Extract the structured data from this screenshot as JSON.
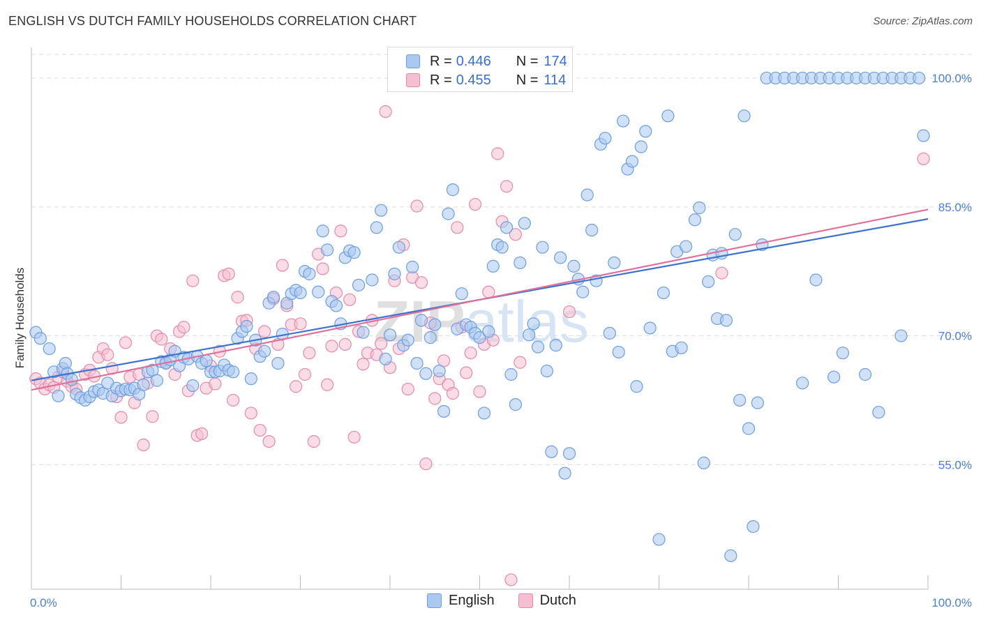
{
  "title": "ENGLISH VS DUTCH FAMILY HOUSEHOLDS CORRELATION CHART",
  "source": "Source: ZipAtlas.com",
  "watermark": "ZIPatlas",
  "legend_top": {
    "rows": [
      {
        "r_label": "R = ",
        "r_value": "0.446",
        "n_label": "N = ",
        "n_value": "174"
      },
      {
        "r_label": "R = ",
        "r_value": "0.455",
        "n_label": "N = ",
        "n_value": "114"
      }
    ]
  },
  "legend_bottom": {
    "english": "English",
    "dutch": "Dutch"
  },
  "colors": {
    "english_fill": "#aac8f0",
    "english_stroke": "#6d9de0",
    "english_line": "#3a73cf",
    "dutch_fill": "#f6bfd1",
    "dutch_stroke": "#e48aaa",
    "dutch_line": "#e0709a",
    "grid": "#dddddd",
    "tick_text": "#4a7fd4"
  },
  "chart_data": {
    "type": "scatter",
    "title": "ENGLISH VS DUTCH FAMILY HOUSEHOLDS CORRELATION CHART",
    "xlabel": "",
    "ylabel": "Family Households",
    "xlim": [
      0,
      100
    ],
    "ylim": [
      40.5,
      103
    ],
    "x_tick_labels": [
      "0.0%",
      "100.0%"
    ],
    "y_ticks": [
      55,
      70,
      85,
      100
    ],
    "y_tick_labels": [
      "55.0%",
      "70.0%",
      "85.0%",
      "100.0%"
    ],
    "grid": true,
    "legend_position": "top-center",
    "series": [
      {
        "name": "English",
        "r": 0.446,
        "n": 174,
        "trend": [
          [
            0,
            64.8
          ],
          [
            100,
            83.6
          ]
        ],
        "points": [
          [
            0.5,
            70.4
          ],
          [
            1,
            69.7
          ],
          [
            2,
            68.5
          ],
          [
            2.5,
            65.8
          ],
          [
            3,
            63
          ],
          [
            3.5,
            66.2
          ],
          [
            3.8,
            66.8
          ],
          [
            4,
            65.6
          ],
          [
            4.5,
            64.9
          ],
          [
            5,
            63.2
          ],
          [
            5.5,
            62.8
          ],
          [
            6,
            62.5
          ],
          [
            6.5,
            62.9
          ],
          [
            7,
            63.5
          ],
          [
            7.5,
            63.7
          ],
          [
            8,
            63.3
          ],
          [
            8.5,
            64.5
          ],
          [
            9,
            63
          ],
          [
            9.5,
            63.9
          ],
          [
            10,
            63.6
          ],
          [
            10.5,
            63.8
          ],
          [
            11,
            63.7
          ],
          [
            11.5,
            63.9
          ],
          [
            12,
            63.2
          ],
          [
            12.5,
            64.3
          ],
          [
            13,
            65.8
          ],
          [
            13.5,
            66
          ],
          [
            14,
            64.8
          ],
          [
            14.5,
            67
          ],
          [
            15,
            66.8
          ],
          [
            15.5,
            67.2
          ],
          [
            16,
            68.2
          ],
          [
            16.5,
            66.5
          ],
          [
            17,
            67.5
          ],
          [
            17.5,
            67.3
          ],
          [
            18,
            64.2
          ],
          [
            18.5,
            67.6
          ],
          [
            19,
            66.8
          ],
          [
            19.5,
            67.1
          ],
          [
            20,
            65.8
          ],
          [
            20.5,
            65.8
          ],
          [
            21,
            65.9
          ],
          [
            21.5,
            66.6
          ],
          [
            22,
            66
          ],
          [
            22.5,
            65.8
          ],
          [
            23,
            69.7
          ],
          [
            23.5,
            70.5
          ],
          [
            24,
            71.1
          ],
          [
            24.5,
            65
          ],
          [
            25,
            69.5
          ],
          [
            25.5,
            67.6
          ],
          [
            26,
            68.2
          ],
          [
            26.5,
            73.8
          ],
          [
            27,
            74.5
          ],
          [
            27.5,
            66.8
          ],
          [
            28,
            70.2
          ],
          [
            28.5,
            73.8
          ],
          [
            29,
            74.9
          ],
          [
            29.5,
            75.3
          ],
          [
            30,
            75
          ],
          [
            30.5,
            77.5
          ],
          [
            31,
            77.2
          ],
          [
            32,
            75.1
          ],
          [
            32.5,
            82.2
          ],
          [
            33,
            80
          ],
          [
            33.5,
            74
          ],
          [
            34,
            73.5
          ],
          [
            34.5,
            71.4
          ],
          [
            35,
            79.1
          ],
          [
            35.5,
            79.9
          ],
          [
            36,
            79.7
          ],
          [
            36.5,
            75.9
          ],
          [
            37,
            70.4
          ],
          [
            38,
            76.5
          ],
          [
            38.5,
            82.6
          ],
          [
            39,
            84.6
          ],
          [
            39.5,
            67.3
          ],
          [
            40,
            70.1
          ],
          [
            40.5,
            77.2
          ],
          [
            41,
            80.3
          ],
          [
            41.5,
            68.9
          ],
          [
            42,
            69.5
          ],
          [
            42.5,
            78
          ],
          [
            43,
            66.8
          ],
          [
            43.5,
            71.8
          ],
          [
            44,
            65.6
          ],
          [
            44.5,
            69.8
          ],
          [
            45,
            71.3
          ],
          [
            45.5,
            65.9
          ],
          [
            46,
            61.2
          ],
          [
            46.5,
            84.2
          ],
          [
            47,
            87
          ],
          [
            47.5,
            70.8
          ],
          [
            48,
            74.9
          ],
          [
            48.5,
            71.3
          ],
          [
            49,
            71
          ],
          [
            49.5,
            70.3
          ],
          [
            50,
            69.8
          ],
          [
            50.5,
            61
          ],
          [
            51,
            70.5
          ],
          [
            51.5,
            78.1
          ],
          [
            52,
            80.6
          ],
          [
            52.5,
            80.3
          ],
          [
            53,
            82.6
          ],
          [
            53.5,
            65.5
          ],
          [
            54,
            62
          ],
          [
            54.5,
            78.5
          ],
          [
            55,
            83.1
          ],
          [
            55.5,
            70.1
          ],
          [
            56,
            71.4
          ],
          [
            56.5,
            68.7
          ],
          [
            57,
            80.3
          ],
          [
            57.5,
            65.9
          ],
          [
            58,
            56.5
          ],
          [
            58.5,
            68.9
          ],
          [
            59,
            79.1
          ],
          [
            59.5,
            54
          ],
          [
            60,
            56.3
          ],
          [
            60.5,
            78.1
          ],
          [
            61,
            76.6
          ],
          [
            61.5,
            75.1
          ],
          [
            62,
            86.4
          ],
          [
            62.5,
            82.3
          ],
          [
            63,
            76.4
          ],
          [
            63.5,
            92.3
          ],
          [
            64,
            93
          ],
          [
            64.5,
            70.3
          ],
          [
            65,
            78.5
          ],
          [
            65.5,
            68.1
          ],
          [
            66,
            95
          ],
          [
            66.5,
            89.4
          ],
          [
            67,
            90.3
          ],
          [
            67.5,
            64.1
          ],
          [
            68,
            92
          ],
          [
            68.5,
            93.8
          ],
          [
            69,
            70.9
          ],
          [
            70,
            46.3
          ],
          [
            70.5,
            75
          ],
          [
            71,
            95.6
          ],
          [
            71.5,
            68.2
          ],
          [
            72,
            79.8
          ],
          [
            72.5,
            68.6
          ],
          [
            73,
            80.4
          ],
          [
            74,
            83.5
          ],
          [
            74.5,
            84.9
          ],
          [
            75,
            55.2
          ],
          [
            75.5,
            76.3
          ],
          [
            76,
            79.4
          ],
          [
            76.5,
            72
          ],
          [
            77,
            79.6
          ],
          [
            77.5,
            71.8
          ],
          [
            78,
            44.4
          ],
          [
            78.5,
            81.8
          ],
          [
            79,
            62.5
          ],
          [
            79.5,
            95.6
          ],
          [
            80,
            59.2
          ],
          [
            80.5,
            47.8
          ],
          [
            81,
            62.2
          ],
          [
            81.5,
            80.6
          ],
          [
            82,
            100
          ],
          [
            83,
            100
          ],
          [
            84,
            100
          ],
          [
            85,
            100
          ],
          [
            86,
            100
          ],
          [
            87,
            100
          ],
          [
            88,
            100
          ],
          [
            89,
            100
          ],
          [
            90,
            100
          ],
          [
            91,
            100
          ],
          [
            92,
            100
          ],
          [
            93,
            100
          ],
          [
            94,
            100
          ],
          [
            95,
            100
          ],
          [
            96,
            100
          ],
          [
            97,
            100
          ],
          [
            98,
            100
          ],
          [
            99,
            100
          ],
          [
            90.5,
            68
          ],
          [
            87.5,
            76.5
          ],
          [
            86,
            64.5
          ],
          [
            89.5,
            65.2
          ],
          [
            93,
            65.5
          ],
          [
            94.5,
            61.1
          ],
          [
            97,
            70
          ],
          [
            99.5,
            93.3
          ]
        ]
      },
      {
        "name": "Dutch",
        "r": 0.455,
        "n": 114,
        "trend": [
          [
            0,
            63.7
          ],
          [
            100,
            84.7
          ]
        ],
        "points": [
          [
            0.5,
            65
          ],
          [
            1,
            64.5
          ],
          [
            1.5,
            63.8
          ],
          [
            2,
            64.3
          ],
          [
            2.5,
            64
          ],
          [
            3,
            65.2
          ],
          [
            3.5,
            65.8
          ],
          [
            4,
            64.7
          ],
          [
            4.5,
            64.1
          ],
          [
            5,
            63.8
          ],
          [
            6,
            65.5
          ],
          [
            6.5,
            66
          ],
          [
            7,
            65.3
          ],
          [
            7.5,
            67.5
          ],
          [
            8,
            68.5
          ],
          [
            8.5,
            67.8
          ],
          [
            9,
            66.2
          ],
          [
            9.5,
            62.9
          ],
          [
            10,
            60.5
          ],
          [
            10.5,
            69.2
          ],
          [
            11,
            65.2
          ],
          [
            11.5,
            62.2
          ],
          [
            12,
            65.5
          ],
          [
            12.5,
            57.3
          ],
          [
            13,
            64.5
          ],
          [
            13.5,
            60.6
          ],
          [
            14,
            70
          ],
          [
            14.5,
            69.6
          ],
          [
            15,
            66.9
          ],
          [
            15.5,
            68.5
          ],
          [
            16,
            65.5
          ],
          [
            16.5,
            70.5
          ],
          [
            17,
            71
          ],
          [
            17.5,
            63.6
          ],
          [
            18,
            76.4
          ],
          [
            18.5,
            58.4
          ],
          [
            19,
            58.6
          ],
          [
            19.5,
            63.9
          ],
          [
            20,
            66.5
          ],
          [
            20.5,
            64.4
          ],
          [
            21,
            68.2
          ],
          [
            21.5,
            77
          ],
          [
            22,
            77.2
          ],
          [
            22.5,
            62.5
          ],
          [
            23,
            74.5
          ],
          [
            23.5,
            71.7
          ],
          [
            24,
            71.8
          ],
          [
            24.5,
            61
          ],
          [
            25,
            68.5
          ],
          [
            25.5,
            59
          ],
          [
            26,
            70.5
          ],
          [
            26.5,
            57.7
          ],
          [
            27,
            74.3
          ],
          [
            27.5,
            69
          ],
          [
            28,
            78.2
          ],
          [
            28.5,
            73.5
          ],
          [
            29,
            71.3
          ],
          [
            29.5,
            64.1
          ],
          [
            30,
            71.4
          ],
          [
            30.5,
            65.5
          ],
          [
            31,
            68
          ],
          [
            31.5,
            57.7
          ],
          [
            32,
            79.5
          ],
          [
            32.5,
            77.8
          ],
          [
            33,
            64.3
          ],
          [
            33.5,
            68.8
          ],
          [
            34,
            75
          ],
          [
            34.5,
            82.2
          ],
          [
            35,
            69
          ],
          [
            35.5,
            74.2
          ],
          [
            36,
            58.2
          ],
          [
            36.5,
            70.5
          ],
          [
            37,
            66.7
          ],
          [
            37.5,
            68
          ],
          [
            38,
            71.8
          ],
          [
            38.5,
            67.8
          ],
          [
            39,
            69.1
          ],
          [
            39.5,
            96.1
          ],
          [
            40,
            66.3
          ],
          [
            40.5,
            76.4
          ],
          [
            41,
            68.5
          ],
          [
            41.5,
            80.6
          ],
          [
            42,
            63.8
          ],
          [
            42.5,
            76.8
          ],
          [
            43,
            85.1
          ],
          [
            43.5,
            76.2
          ],
          [
            44,
            55.1
          ],
          [
            44.5,
            71.5
          ],
          [
            45,
            62.7
          ],
          [
            45.5,
            65
          ],
          [
            46,
            67.1
          ],
          [
            46.5,
            64.3
          ],
          [
            47,
            63.3
          ],
          [
            47.5,
            82.6
          ],
          [
            48,
            71
          ],
          [
            48.5,
            65.7
          ],
          [
            49,
            68
          ],
          [
            49.5,
            85.3
          ],
          [
            50,
            63.5
          ],
          [
            50.5,
            69
          ],
          [
            51,
            75.1
          ],
          [
            51.5,
            69.5
          ],
          [
            52,
            91.2
          ],
          [
            52.5,
            83.3
          ],
          [
            53,
            87.4
          ],
          [
            53.5,
            41.6
          ],
          [
            54,
            81.8
          ],
          [
            54.5,
            66.9
          ],
          [
            55,
            100
          ],
          [
            60,
            72.8
          ],
          [
            77,
            77.3
          ],
          [
            99.5,
            90.6
          ]
        ]
      }
    ]
  }
}
